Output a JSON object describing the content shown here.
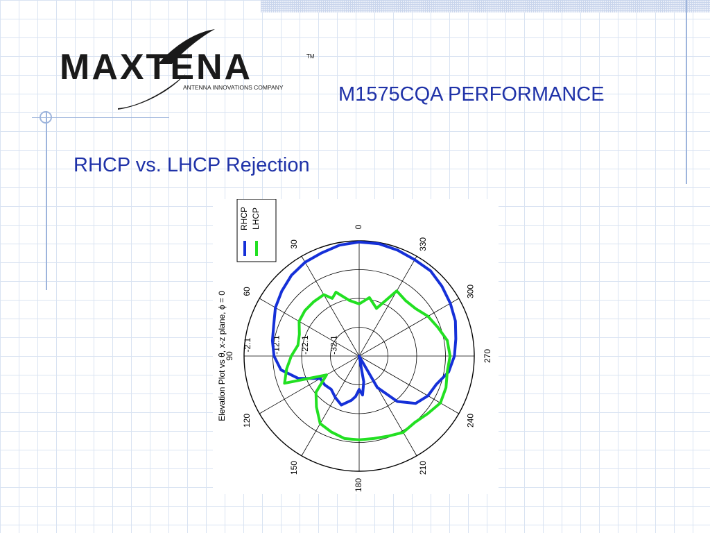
{
  "header": {
    "title": "M1575CQA PERFORMANCE",
    "subtitle": "RHCP vs. LHCP Rejection"
  },
  "logo": {
    "name": "MAXTENA",
    "tagline": "ANTENNA INNOVATIONS COMPANY",
    "trademark": "TM"
  },
  "colors": {
    "accent": "#1f32a8",
    "rhcp": "#1530d8",
    "lhcp": "#22e022",
    "grid": "#9db4dc"
  },
  "chart_data": {
    "type": "polar",
    "ylabel": "Elevation Plot vs θ, x-z plane, ϕ = 0",
    "angle_direction": "counterclockwise",
    "zero_at": "top",
    "angle_ticks": [
      "0",
      "30",
      "60",
      "90",
      "120",
      "150",
      "180",
      "210",
      "240",
      "270",
      "300",
      "330"
    ],
    "radial_ticks": [
      "-32.1",
      "-22.1",
      "-12.1",
      "-2.1"
    ],
    "radial_range": [
      -42.1,
      -2.1
    ],
    "legend": {
      "placement": "top-left",
      "entries": [
        "RHCP",
        "LHCP"
      ]
    },
    "series": [
      {
        "name": "RHCP",
        "color": "#1530d8",
        "theta": [
          0,
          10,
          20,
          30,
          40,
          50,
          60,
          70,
          80,
          90,
          100,
          110,
          120,
          130,
          140,
          150,
          160,
          170,
          175,
          180,
          185,
          190,
          200,
          210,
          220,
          230,
          240,
          250,
          260,
          270,
          280,
          290,
          300,
          310,
          320,
          330,
          340,
          350
        ],
        "r": [
          -2.5,
          -3,
          -4,
          -4.5,
          -5.5,
          -7,
          -8.5,
          -10.5,
          -11.5,
          -12.5,
          -14.5,
          -19.5,
          -26.5,
          -26.5,
          -27,
          -25.5,
          -24,
          -26.5,
          -28,
          -30.5,
          -28.5,
          -33,
          -42,
          -29.5,
          -21.5,
          -16.5,
          -14.5,
          -13.5,
          -10.5,
          -9,
          -8,
          -6.5,
          -5.5,
          -4.5,
          -3.5,
          -3.5,
          -3,
          -2.5
        ]
      },
      {
        "name": "LHCP",
        "color": "#22e022",
        "theta": [
          0,
          10,
          20,
          25,
          30,
          40,
          50,
          60,
          70,
          80,
          90,
          100,
          110,
          120,
          130,
          140,
          150,
          160,
          170,
          180,
          190,
          200,
          210,
          220,
          230,
          240,
          250,
          260,
          270,
          280,
          290,
          300,
          310,
          320,
          330,
          340,
          350
        ],
        "r": [
          -24,
          -22.5,
          -18.5,
          -20,
          -17.5,
          -17.5,
          -17.5,
          -18,
          -20,
          -20.5,
          -18.5,
          -16.5,
          -14.5,
          -29,
          -22.5,
          -19,
          -15,
          -14,
          -13,
          -13,
          -13,
          -12.5,
          -11.5,
          -12,
          -11,
          -9.5,
          -10,
          -11,
          -10.5,
          -11,
          -13,
          -14.5,
          -16.5,
          -17,
          -16,
          -24.5,
          -21.5
        ]
      }
    ]
  }
}
